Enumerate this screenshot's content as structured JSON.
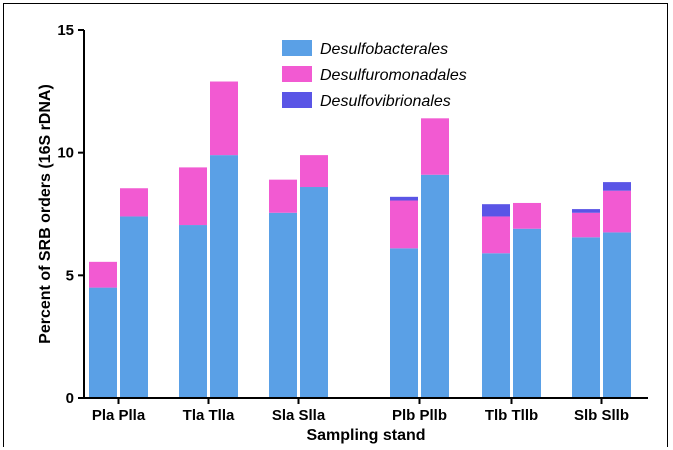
{
  "chart_data": {
    "type": "bar",
    "stacked": true,
    "xlabel": "Sampling stand",
    "ylabel": "Percent of SRB orders (16S rDNA)",
    "ylim": [
      0,
      15
    ],
    "yticks": [
      0,
      5,
      10,
      15
    ],
    "groups": [
      {
        "label": "Pla Plla",
        "categories": [
          "Pla",
          "Plla"
        ]
      },
      {
        "label": "Tla Tlla",
        "categories": [
          "Tla",
          "Tlla"
        ]
      },
      {
        "label": "Sla Slla",
        "categories": [
          "Sla",
          "Slla"
        ]
      },
      {
        "label": "Plb Pllb",
        "categories": [
          "Plb",
          "Pllb"
        ]
      },
      {
        "label": "Tlb Tllb",
        "categories": [
          "Tlb",
          "Tllb"
        ]
      },
      {
        "label": "Slb Sllb",
        "categories": [
          "Slb",
          "Sllb"
        ]
      }
    ],
    "categories": [
      "Pla",
      "Plla",
      "Tla",
      "Tlla",
      "Sla",
      "Slla",
      "Plb",
      "Pllb",
      "Tlb",
      "Tllb",
      "Slb",
      "Sllb"
    ],
    "series": [
      {
        "name": "Desulfobacterales",
        "color": "#5aa0e6",
        "values": [
          4.5,
          7.4,
          7.05,
          9.9,
          7.55,
          8.6,
          6.1,
          9.1,
          5.9,
          6.9,
          6.55,
          6.75
        ]
      },
      {
        "name": "Desulfuromonadales",
        "color": "#f25ad2",
        "values": [
          1.05,
          1.15,
          2.35,
          3.0,
          1.35,
          1.3,
          1.95,
          2.3,
          1.5,
          1.05,
          1.0,
          1.7
        ]
      },
      {
        "name": "Desulfovibrionales",
        "color": "#5a55e6",
        "values": [
          0,
          0,
          0,
          0,
          0,
          0,
          0.15,
          0,
          0.5,
          0,
          0.15,
          0.35
        ]
      }
    ],
    "legend_position": "top-center",
    "grid": false
  }
}
